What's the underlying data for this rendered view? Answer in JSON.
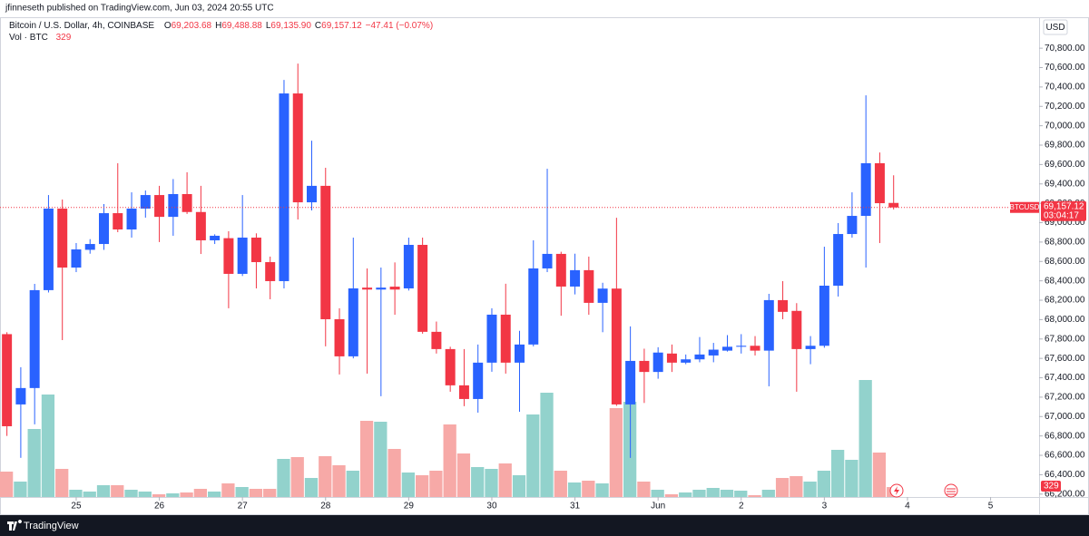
{
  "header": {
    "text": "jfinneseth published on TradingView.com, Jun 03, 2024 20:55 UTC"
  },
  "footer": {
    "brand": "TradingView"
  },
  "chart_data": {
    "type": "candlestick",
    "title": "Bitcoin / U.S. Dollar, 4h, COINBASE",
    "legend": [
      {
        "key": "O",
        "label": "69,203.68"
      },
      {
        "key": "H",
        "label": "69,488.88"
      },
      {
        "key": "L",
        "label": "69,135.90"
      },
      {
        "key": "C",
        "label": "69,157.12"
      }
    ],
    "change": "−47.41 (−0.07%)",
    "volume_title": "Vol · BTC",
    "currency": "USD",
    "symbol_tag": "BTCUSD",
    "last_price_label": "69,157.12",
    "countdown": "03:04:17",
    "up_color": "#2962ff",
    "down_color": "#f23645",
    "volume_up_color": "#92d2cc",
    "volume_down_color": "#f7a9a7",
    "open": [
      67850,
      67125,
      67294,
      68304,
      69145,
      68537,
      68720,
      68780,
      69098,
      68930,
      69145,
      69285,
      69060,
      69295,
      69110,
      68818,
      68840,
      68472,
      68846,
      68593,
      68397,
      70333,
      69210,
      69380,
      68004,
      67621,
      68330,
      68310,
      68340,
      68322,
      68771,
      67874,
      67696,
      67322,
      67181,
      67556,
      68051,
      67556,
      67743,
      68528,
      68678,
      68341,
      68510,
      68173,
      68320,
      67125,
      67574,
      67460,
      67650,
      67556,
      67590,
      67630,
      67680,
      67720,
      67730,
      67680,
      68201,
      68090,
      67696,
      67730,
      68350,
      68883,
      69070,
      69613,
      69203.68
    ],
    "high": [
      67870,
      67509,
      68369,
      69285,
      69239,
      68790,
      68830,
      69192,
      69613,
      69313,
      69332,
      69380,
      69450,
      69520,
      69380,
      68880,
      68912,
      69285,
      68890,
      68650,
      70473,
      70641,
      69846,
      69566,
      68117,
      68846,
      68528,
      68537,
      68590,
      68846,
      68846,
      67980,
      67720,
      67696,
      67743,
      68117,
      68370,
      67884,
      68818,
      69556,
      68700,
      68680,
      68650,
      68380,
      69050,
      67930,
      67700,
      67715,
      67743,
      67640,
      67820,
      67760,
      67840,
      67850,
      67830,
      68266,
      68397,
      68170,
      67830,
      68752,
      68996,
      69313,
      70314,
      69724,
      69488.88
    ],
    "low": [
      66800,
      66574,
      66920,
      68280,
      67789,
      68490,
      68680,
      68720,
      68902,
      68846,
      69052,
      68800,
      68865,
      69090,
      68677,
      68780,
      68117,
      68450,
      68322,
      68210,
      68322,
      69033,
      69126,
      67724,
      67434,
      67600,
      67443,
      67210,
      68050,
      68300,
      67855,
      67650,
      67256,
      67107,
      67040,
      67462,
      67443,
      67050,
      67724,
      68490,
      68040,
      68260,
      68050,
      67870,
      67110,
      66574,
      67140,
      67390,
      67460,
      67540,
      67560,
      67560,
      67670,
      67650,
      67630,
      67312,
      68004,
      67256,
      67540,
      67710,
      68238,
      68846,
      68537,
      68790,
      69135.9
    ],
    "close": [
      66900,
      67294,
      68304,
      69145,
      68537,
      68724,
      68780,
      69098,
      68930,
      69145,
      69285,
      69060,
      69295,
      69110,
      68818,
      68865,
      68472,
      68846,
      68593,
      68397,
      70333,
      69210,
      69380,
      68004,
      67621,
      68322,
      68310,
      68330,
      68310,
      68771,
      67874,
      67696,
      67322,
      67181,
      67556,
      68051,
      67556,
      67743,
      68528,
      68678,
      68341,
      68510,
      68173,
      68320,
      67125,
      67574,
      67460,
      67660,
      67556,
      67590,
      67640,
      67690,
      67720,
      67730,
      67680,
      68201,
      68080,
      67696,
      67730,
      68350,
      68883,
      69070,
      69613,
      69201,
      69157.12
    ],
    "volume": [
      840,
      510,
      2250,
      3390,
      930,
      240,
      180,
      390,
      390,
      240,
      180,
      90,
      120,
      150,
      270,
      180,
      450,
      330,
      270,
      270,
      1260,
      1320,
      630,
      1350,
      1050,
      870,
      2520,
      2490,
      1590,
      810,
      720,
      870,
      2400,
      1440,
      990,
      930,
      1110,
      720,
      2730,
      3450,
      870,
      480,
      540,
      450,
      2940,
      3150,
      510,
      240,
      90,
      150,
      240,
      300,
      240,
      210,
      60,
      240,
      630,
      690,
      510,
      870,
      1560,
      1230,
      3870,
      1470,
      329
    ],
    "xlim": [
      -0.5,
      74.5
    ],
    "xticks": [
      {
        "value": 5,
        "label": "25"
      },
      {
        "value": 11,
        "label": "26"
      },
      {
        "value": 17,
        "label": "27"
      },
      {
        "value": 23,
        "label": "28"
      },
      {
        "value": 29,
        "label": "29"
      },
      {
        "value": 35,
        "label": "30"
      },
      {
        "value": 41,
        "label": "31"
      },
      {
        "value": 47,
        "label": "Jun"
      },
      {
        "value": 53,
        "label": "2"
      },
      {
        "value": 59,
        "label": "3"
      },
      {
        "value": 65,
        "label": "4"
      },
      {
        "value": 71,
        "label": "5"
      }
    ],
    "ylim": [
      66170,
      71110
    ],
    "yticks": [
      {
        "value": 66200,
        "label": "66,200.00"
      },
      {
        "value": 66400,
        "label": "66,400.00"
      },
      {
        "value": 66600,
        "label": "66,600.00"
      },
      {
        "value": 66800,
        "label": "66,800.00"
      },
      {
        "value": 67000,
        "label": "67,000.00"
      },
      {
        "value": 67200,
        "label": "67,200.00"
      },
      {
        "value": 67400,
        "label": "67,400.00"
      },
      {
        "value": 67600,
        "label": "67,600.00"
      },
      {
        "value": 67800,
        "label": "67,800.00"
      },
      {
        "value": 68000,
        "label": "68,000.00"
      },
      {
        "value": 68200,
        "label": "68,200.00"
      },
      {
        "value": 68400,
        "label": "68,400.00"
      },
      {
        "value": 68600,
        "label": "68,600.00"
      },
      {
        "value": 68800,
        "label": "68,800.00"
      },
      {
        "value": 69000,
        "label": "69,000.00"
      },
      {
        "value": 69200,
        "label": "69,200.00"
      },
      {
        "value": 69400,
        "label": "69,400.00"
      },
      {
        "value": 69600,
        "label": "69,600.00"
      },
      {
        "value": 69800,
        "label": "69,800.00"
      },
      {
        "value": 70000,
        "label": "70,000.00"
      },
      {
        "value": 70200,
        "label": "70,200.00"
      },
      {
        "value": 70400,
        "label": "70,400.00"
      },
      {
        "value": 70600,
        "label": "70,600.00"
      },
      {
        "value": 70800,
        "label": "70,800.00"
      }
    ]
  }
}
